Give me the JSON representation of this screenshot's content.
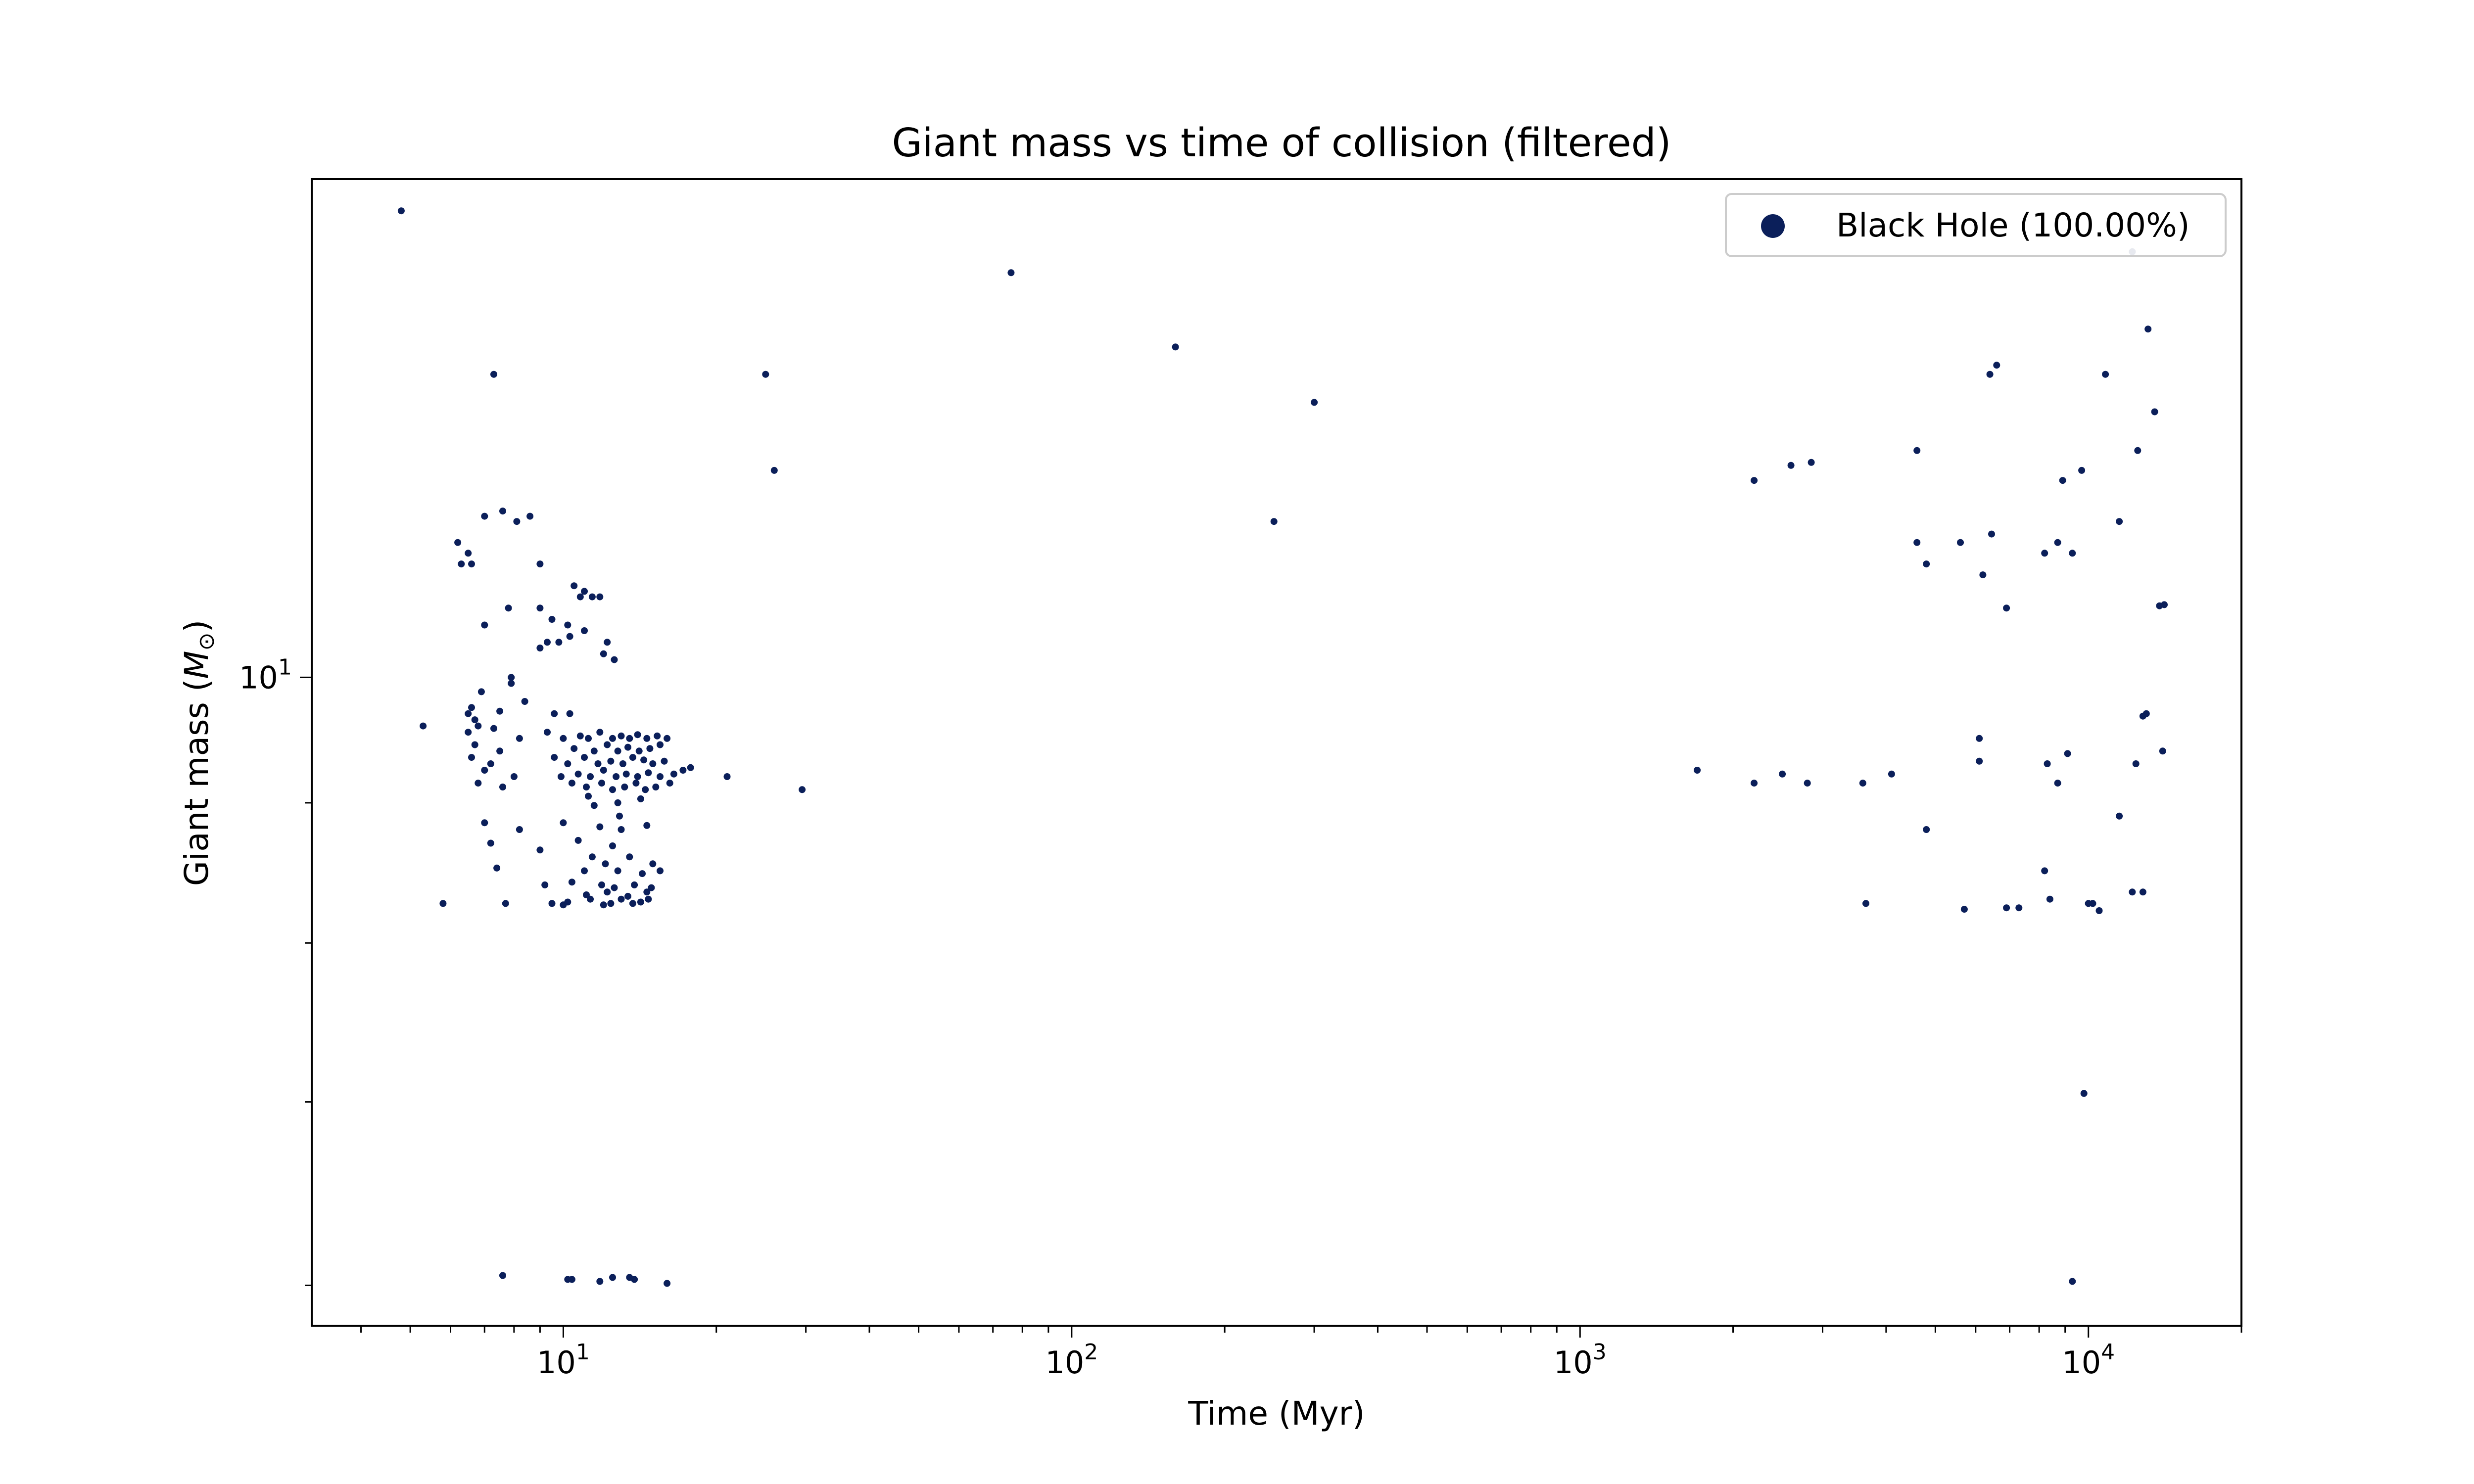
{
  "chart_data": {
    "type": "scatter",
    "title": "Giant mass vs time of collision (filtered)",
    "xlabel": "Time (Myr)",
    "ylabel_text": "Giant mass (",
    "ylabel_symbol": "M",
    "ylabel_sub": "⊙",
    "ylabel_close": ")",
    "xscale": "log",
    "yscale": "log",
    "xlim": [
      3.2,
      20000
    ],
    "ylim": [
      5.8,
      15.2
    ],
    "x_ticks": [
      {
        "value": 10,
        "base": "10",
        "exp": "1"
      },
      {
        "value": 100,
        "base": "10",
        "exp": "2"
      },
      {
        "value": 1000,
        "base": "10",
        "exp": "3"
      },
      {
        "value": 10000,
        "base": "10",
        "exp": "4"
      }
    ],
    "y_ticks": [
      {
        "value": 10,
        "base": "10",
        "exp": "1"
      }
    ],
    "grid": false,
    "legend_position": "top-right",
    "series": [
      {
        "name": "Black Hole (100.00%)",
        "color": "#0b1f5a",
        "points": [
          [
            4.8,
            14.8
          ],
          [
            7.3,
            12.9
          ],
          [
            7.6,
            11.5
          ],
          [
            8.1,
            11.4
          ],
          [
            6.2,
            11.2
          ],
          [
            6.5,
            11.1
          ],
          [
            6.3,
            11.0
          ],
          [
            6.6,
            11.0
          ],
          [
            7.0,
            11.45
          ],
          [
            8.6,
            11.45
          ],
          [
            9.0,
            11.0
          ],
          [
            10.5,
            10.8
          ],
          [
            10.8,
            10.7
          ],
          [
            11.0,
            10.75
          ],
          [
            11.4,
            10.7
          ],
          [
            11.8,
            10.7
          ],
          [
            7.8,
            10.6
          ],
          [
            9.0,
            10.6
          ],
          [
            9.5,
            10.5
          ],
          [
            10.2,
            10.45
          ],
          [
            11.0,
            10.4
          ],
          [
            7.0,
            10.45
          ],
          [
            9.3,
            10.3
          ],
          [
            9.8,
            10.3
          ],
          [
            10.3,
            10.35
          ],
          [
            12.2,
            10.3
          ],
          [
            9.0,
            10.25
          ],
          [
            12.0,
            10.2
          ],
          [
            12.6,
            10.15
          ],
          [
            7.9,
            10.0
          ],
          [
            6.9,
            9.88
          ],
          [
            7.9,
            9.95
          ],
          [
            8.4,
            9.8
          ],
          [
            6.6,
            9.75
          ],
          [
            6.5,
            9.7
          ],
          [
            7.5,
            9.72
          ],
          [
            6.7,
            9.65
          ],
          [
            9.6,
            9.7
          ],
          [
            10.3,
            9.7
          ],
          [
            5.3,
            9.6
          ],
          [
            6.5,
            9.55
          ],
          [
            6.8,
            9.6
          ],
          [
            7.3,
            9.58
          ],
          [
            8.2,
            9.5
          ],
          [
            9.3,
            9.55
          ],
          [
            10.0,
            9.5
          ],
          [
            10.8,
            9.52
          ],
          [
            11.2,
            9.5
          ],
          [
            11.8,
            9.55
          ],
          [
            12.5,
            9.5
          ],
          [
            13.0,
            9.52
          ],
          [
            13.5,
            9.5
          ],
          [
            14.0,
            9.53
          ],
          [
            14.6,
            9.5
          ],
          [
            15.3,
            9.52
          ],
          [
            16.0,
            9.5
          ],
          [
            6.7,
            9.45
          ],
          [
            7.5,
            9.4
          ],
          [
            10.5,
            9.42
          ],
          [
            11.5,
            9.4
          ],
          [
            12.2,
            9.45
          ],
          [
            12.8,
            9.4
          ],
          [
            13.4,
            9.43
          ],
          [
            14.1,
            9.4
          ],
          [
            14.8,
            9.42
          ],
          [
            15.5,
            9.45
          ],
          [
            6.6,
            9.35
          ],
          [
            7.2,
            9.3
          ],
          [
            9.6,
            9.35
          ],
          [
            10.2,
            9.3
          ],
          [
            11.0,
            9.35
          ],
          [
            11.7,
            9.3
          ],
          [
            12.4,
            9.32
          ],
          [
            13.1,
            9.3
          ],
          [
            13.7,
            9.35
          ],
          [
            14.4,
            9.33
          ],
          [
            15.0,
            9.3
          ],
          [
            15.8,
            9.32
          ],
          [
            7.0,
            9.25
          ],
          [
            8.0,
            9.2
          ],
          [
            9.9,
            9.2
          ],
          [
            10.7,
            9.22
          ],
          [
            11.3,
            9.2
          ],
          [
            12.0,
            9.25
          ],
          [
            12.7,
            9.2
          ],
          [
            13.3,
            9.22
          ],
          [
            14.0,
            9.2
          ],
          [
            14.7,
            9.23
          ],
          [
            15.5,
            9.2
          ],
          [
            16.5,
            9.22
          ],
          [
            17.2,
            9.25
          ],
          [
            17.8,
            9.27
          ],
          [
            21.0,
            9.2
          ],
          [
            6.8,
            9.15
          ],
          [
            7.6,
            9.12
          ],
          [
            10.4,
            9.15
          ],
          [
            11.1,
            9.12
          ],
          [
            11.9,
            9.15
          ],
          [
            12.5,
            9.1
          ],
          [
            13.2,
            9.12
          ],
          [
            13.9,
            9.15
          ],
          [
            14.5,
            9.1
          ],
          [
            15.2,
            9.12
          ],
          [
            16.2,
            9.15
          ],
          [
            29.5,
            9.1
          ],
          [
            11.2,
            9.05
          ],
          [
            12.8,
            9.0
          ],
          [
            14.2,
            9.03
          ],
          [
            11.5,
            8.98
          ],
          [
            12.9,
            8.9
          ],
          [
            7.0,
            8.85
          ],
          [
            8.2,
            8.8
          ],
          [
            10.0,
            8.85
          ],
          [
            11.8,
            8.82
          ],
          [
            13.0,
            8.8
          ],
          [
            14.6,
            8.83
          ],
          [
            7.2,
            8.7
          ],
          [
            9.0,
            8.65
          ],
          [
            10.7,
            8.72
          ],
          [
            12.5,
            8.68
          ],
          [
            11.4,
            8.6
          ],
          [
            12.1,
            8.55
          ],
          [
            13.5,
            8.6
          ],
          [
            15.0,
            8.55
          ],
          [
            7.4,
            8.52
          ],
          [
            11.0,
            8.5
          ],
          [
            12.8,
            8.5
          ],
          [
            14.3,
            8.48
          ],
          [
            15.5,
            8.5
          ],
          [
            9.2,
            8.4
          ],
          [
            10.4,
            8.42
          ],
          [
            11.9,
            8.4
          ],
          [
            12.6,
            8.38
          ],
          [
            13.8,
            8.4
          ],
          [
            14.9,
            8.38
          ],
          [
            11.1,
            8.33
          ],
          [
            12.2,
            8.35
          ],
          [
            13.4,
            8.32
          ],
          [
            14.6,
            8.35
          ],
          [
            5.8,
            8.27
          ],
          [
            7.7,
            8.27
          ],
          [
            9.5,
            8.27
          ],
          [
            10.2,
            8.28
          ],
          [
            11.3,
            8.3
          ],
          [
            12.4,
            8.27
          ],
          [
            13.0,
            8.3
          ],
          [
            13.7,
            8.27
          ],
          [
            14.2,
            8.28
          ],
          [
            14.7,
            8.3
          ],
          [
            10.0,
            8.26
          ],
          [
            12.0,
            8.26
          ],
          [
            7.6,
            6.05
          ],
          [
            10.2,
            6.03
          ],
          [
            10.4,
            6.03
          ],
          [
            11.8,
            6.02
          ],
          [
            12.5,
            6.04
          ],
          [
            13.5,
            6.04
          ],
          [
            13.8,
            6.03
          ],
          [
            16.0,
            6.01
          ],
          [
            25.0,
            12.9
          ],
          [
            26.0,
            11.9
          ],
          [
            76.0,
            14.05
          ],
          [
            160.0,
            13.2
          ],
          [
            250.0,
            11.4
          ],
          [
            300.0,
            12.6
          ],
          [
            1700.0,
            9.25
          ],
          [
            2200.0,
            9.15
          ],
          [
            2500.0,
            9.22
          ],
          [
            2800.0,
            9.15
          ],
          [
            3600.0,
            9.15
          ],
          [
            4100.0,
            9.22
          ],
          [
            2200.0,
            11.8
          ],
          [
            2600.0,
            11.95
          ],
          [
            2850.0,
            11.98
          ],
          [
            3650.0,
            8.27
          ],
          [
            4600.0,
            12.1
          ],
          [
            4600.0,
            11.2
          ],
          [
            4800.0,
            11.0
          ],
          [
            5600.0,
            11.2
          ],
          [
            6200.0,
            10.9
          ],
          [
            6400.0,
            12.9
          ],
          [
            6600.0,
            13.0
          ],
          [
            6450.0,
            11.28
          ],
          [
            6900.0,
            10.6
          ],
          [
            4800.0,
            8.8
          ],
          [
            6100.0,
            9.5
          ],
          [
            6100.0,
            9.32
          ],
          [
            5700.0,
            8.23
          ],
          [
            6900.0,
            8.24
          ],
          [
            7300.0,
            8.24
          ],
          [
            8200.0,
            8.5
          ],
          [
            8400.0,
            8.3
          ],
          [
            8200.0,
            11.1
          ],
          [
            8700.0,
            11.2
          ],
          [
            8900.0,
            11.8
          ],
          [
            9300.0,
            11.1
          ],
          [
            9700.0,
            11.9
          ],
          [
            10800.0,
            12.9
          ],
          [
            12200.0,
            14.3
          ],
          [
            13100.0,
            13.4
          ],
          [
            12500.0,
            12.1
          ],
          [
            13500.0,
            12.5
          ],
          [
            11500.0,
            11.4
          ],
          [
            13800.0,
            10.62
          ],
          [
            14100.0,
            10.63
          ],
          [
            12800.0,
            9.68
          ],
          [
            13000.0,
            9.7
          ],
          [
            8300.0,
            9.3
          ],
          [
            8700.0,
            9.15
          ],
          [
            9100.0,
            9.38
          ],
          [
            11500.0,
            8.9
          ],
          [
            12400.0,
            9.3
          ],
          [
            14000.0,
            9.4
          ],
          [
            10200.0,
            8.27
          ],
          [
            10000.0,
            8.27
          ],
          [
            10500.0,
            8.22
          ],
          [
            12200.0,
            8.35
          ],
          [
            12800.0,
            8.35
          ],
          [
            9800.0,
            7.05
          ],
          [
            9300.0,
            6.02
          ]
        ]
      }
    ]
  }
}
